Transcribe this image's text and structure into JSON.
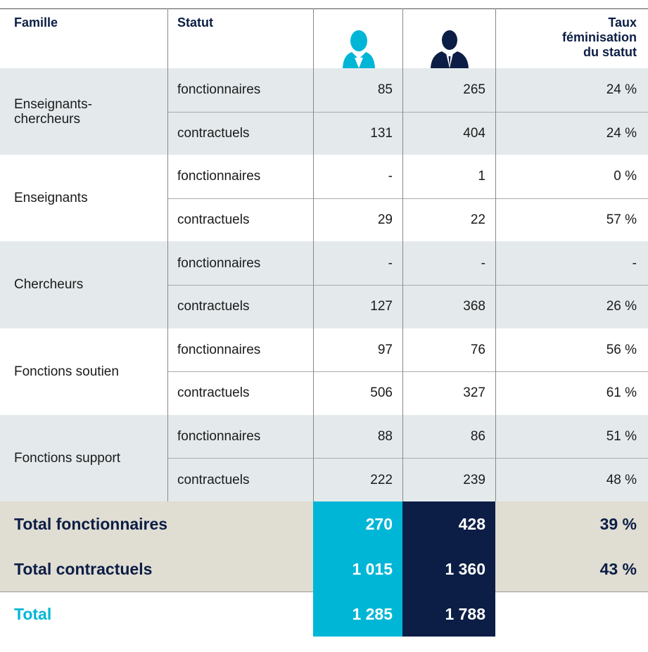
{
  "header": {
    "famille": "Famille",
    "statut": "Statut",
    "taux": "Taux\nféminisation\ndu statut"
  },
  "groups": [
    {
      "famille": "Enseignants-\nchercheurs",
      "rows": [
        {
          "statut": "fonctionnaires",
          "femmes": "85",
          "hommes": "265",
          "taux": "24 %"
        },
        {
          "statut": "contractuels",
          "femmes": "131",
          "hommes": "404",
          "taux": "24 %"
        }
      ]
    },
    {
      "famille": "Enseignants",
      "rows": [
        {
          "statut": "fonctionnaires",
          "femmes": "-",
          "hommes": "1",
          "taux": "0 %"
        },
        {
          "statut": "contractuels",
          "femmes": "29",
          "hommes": "22",
          "taux": "57 %"
        }
      ]
    },
    {
      "famille": "Chercheurs",
      "rows": [
        {
          "statut": "fonctionnaires",
          "femmes": "-",
          "hommes": "-",
          "taux": "-"
        },
        {
          "statut": "contractuels",
          "femmes": "127",
          "hommes": "368",
          "taux": "26 %"
        }
      ]
    },
    {
      "famille": "Fonctions soutien",
      "rows": [
        {
          "statut": "fonctionnaires",
          "femmes": "97",
          "hommes": "76",
          "taux": "56 %"
        },
        {
          "statut": "contractuels",
          "femmes": "506",
          "hommes": "327",
          "taux": "61 %"
        }
      ]
    },
    {
      "famille": "Fonctions support",
      "rows": [
        {
          "statut": "fonctionnaires",
          "femmes": "88",
          "hommes": "86",
          "taux": "51 %"
        },
        {
          "statut": "contractuels",
          "femmes": "222",
          "hommes": "239",
          "taux": "48 %"
        }
      ]
    }
  ],
  "totals": [
    {
      "label": "Total fonctionnaires",
      "femmes": "270",
      "hommes": "428",
      "taux": "39 %"
    },
    {
      "label": "Total contractuels",
      "femmes": "1 015",
      "hommes": "1 360",
      "taux": "43 %"
    }
  ],
  "total": {
    "label": "Total",
    "femmes": "1 285",
    "hommes": "1 788"
  }
}
